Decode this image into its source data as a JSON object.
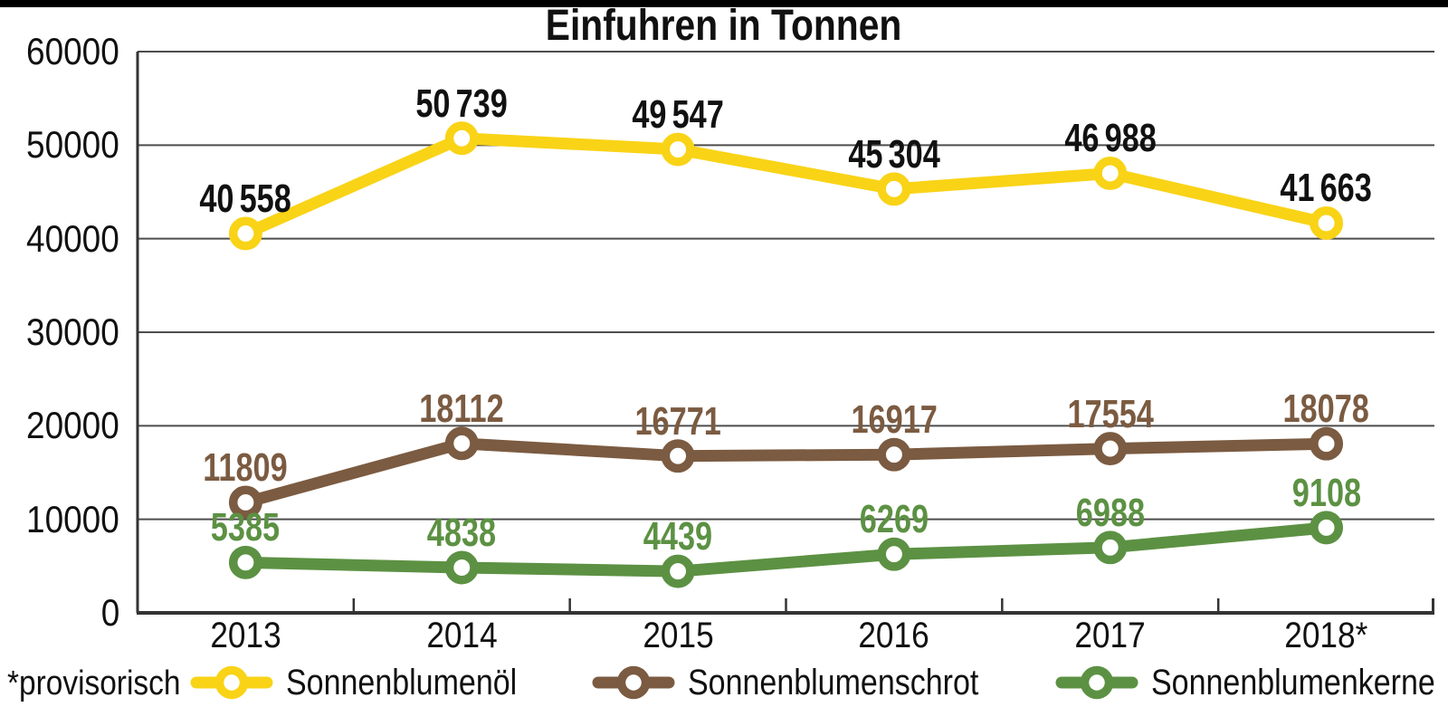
{
  "page": {
    "background": "#ffffff",
    "top_bar_color": "#000000"
  },
  "title": "Einfuhren in Tonnen",
  "footnote": "*provisorisch",
  "chart_data": {
    "type": "line",
    "title": "Einfuhren in Tonnen",
    "xlabel": "",
    "ylabel": "",
    "categories": [
      "2013",
      "2014",
      "2015",
      "2016",
      "2017",
      "2018*"
    ],
    "ylim": [
      0,
      60000
    ],
    "ytick_step": 10000,
    "yticklabels": [
      "60000",
      "50000",
      "40000",
      "30000",
      "20000",
      "10000",
      "0"
    ],
    "grid": true,
    "gridline_color": "#4d4d4d",
    "axis_color": "#333333",
    "legend_position": "bottom",
    "marker_style": "open-circle",
    "series": [
      {
        "name": "Sonnenblumenöl",
        "color": "#F9D316",
        "label_color": "#111111",
        "values": [
          40558,
          50739,
          49547,
          45304,
          46988,
          41663
        ],
        "labels": [
          "40 558",
          "50 739",
          "49 547",
          "45 304",
          "46 988",
          "41 663"
        ]
      },
      {
        "name": "Sonnenblumenschrot",
        "color": "#7B5B41",
        "label_color": "#7B5B41",
        "values": [
          11809,
          18112,
          16771,
          16917,
          17554,
          18078
        ],
        "labels": [
          "11809",
          "18112",
          "16771",
          "16917",
          "17554",
          "18078"
        ]
      },
      {
        "name": "Sonnenblumenkerne",
        "color": "#5C9143",
        "label_color": "#5C9143",
        "values": [
          5385,
          4838,
          4439,
          6269,
          6988,
          9108
        ],
        "labels": [
          "5385",
          "4838",
          "4439",
          "6269",
          "6988",
          "9108"
        ]
      }
    ]
  }
}
